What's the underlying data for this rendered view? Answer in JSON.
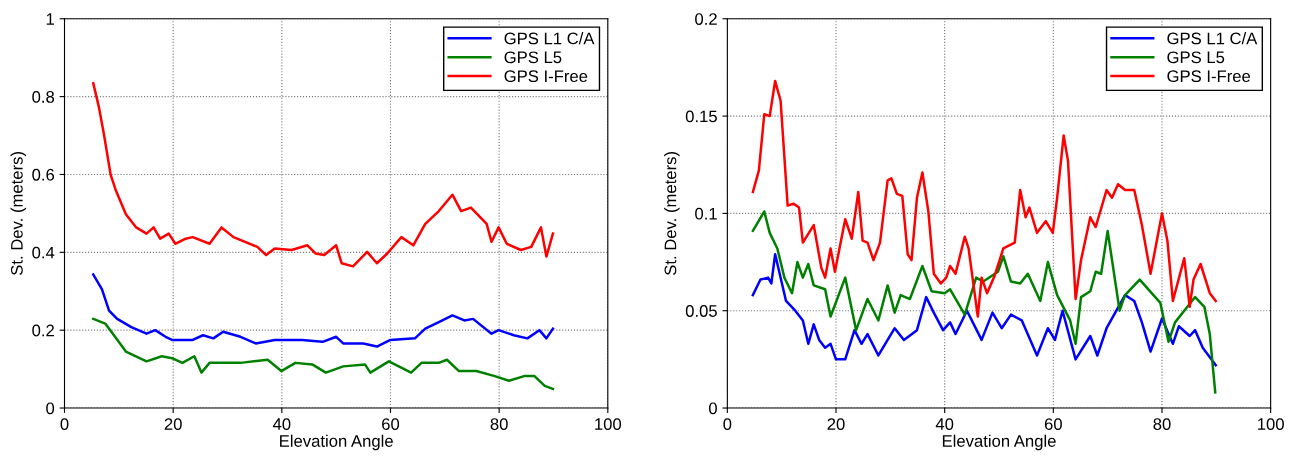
{
  "chart_data": [
    {
      "type": "line",
      "xlabel": "Elevation Angle",
      "ylabel": "St. Dev. (meters)",
      "xlim": [
        0,
        100
      ],
      "xticks": [
        0,
        20,
        40,
        60,
        80,
        100
      ],
      "ylim": [
        0,
        1
      ],
      "yticks": [
        0,
        0.2,
        0.4,
        0.6,
        0.8,
        1
      ],
      "grid": true,
      "legend": "top right",
      "line_style": "solid",
      "series": [
        {
          "name": "GPS L1 C/A",
          "color": "#0000ff",
          "x": [
            5.3,
            6.9,
            8.2,
            9.7,
            12.3,
            15.1,
            16.7,
            18.6,
            19.8,
            23.6,
            25.5,
            27.4,
            29.2,
            32.4,
            35.2,
            38.7,
            43.7,
            47.5,
            50,
            51.3,
            55,
            57.5,
            60,
            64.5,
            66.4,
            68.9,
            71.4,
            73.6,
            75.2,
            78.6,
            79.9,
            82.7,
            85.2,
            87.4,
            88.7,
            89.9
          ],
          "values": [
            0.343,
            0.305,
            0.25,
            0.229,
            0.208,
            0.191,
            0.2,
            0.183,
            0.175,
            0.175,
            0.187,
            0.179,
            0.196,
            0.183,
            0.166,
            0.175,
            0.175,
            0.17,
            0.183,
            0.166,
            0.166,
            0.158,
            0.175,
            0.179,
            0.204,
            0.221,
            0.238,
            0.225,
            0.229,
            0.191,
            0.2,
            0.187,
            0.179,
            0.2,
            0.179,
            0.204
          ]
        },
        {
          "name": "GPS L5",
          "color": "#008000",
          "x": [
            5.3,
            7.5,
            9.1,
            11.3,
            15.1,
            17.9,
            19.8,
            21.7,
            23.9,
            25.2,
            26.7,
            32.4,
            37.4,
            39.9,
            42.5,
            45.6,
            48.1,
            51.3,
            55.3,
            56.3,
            59.7,
            63.8,
            65.7,
            68.9,
            70.4,
            72.6,
            75.8,
            79.2,
            81.8,
            84.6,
            86.5,
            88.4,
            89.9
          ],
          "values": [
            0.229,
            0.217,
            0.187,
            0.145,
            0.12,
            0.133,
            0.128,
            0.116,
            0.133,
            0.091,
            0.116,
            0.116,
            0.124,
            0.095,
            0.116,
            0.112,
            0.091,
            0.107,
            0.112,
            0.091,
            0.12,
            0.091,
            0.116,
            0.116,
            0.124,
            0.095,
            0.095,
            0.082,
            0.07,
            0.082,
            0.082,
            0.057,
            0.049
          ]
        },
        {
          "name": "GPS I-Free",
          "color": "#ff0000",
          "x": [
            5.3,
            6.3,
            7.2,
            8.5,
            9.4,
            11.3,
            13.2,
            15.1,
            16.4,
            17.6,
            19.2,
            20.4,
            22.3,
            23.6,
            26.7,
            28.9,
            31.1,
            35.5,
            37.1,
            38.7,
            41.8,
            44.7,
            46.2,
            47.8,
            50,
            51,
            53.1,
            55.7,
            57.5,
            59.4,
            62,
            64.2,
            66.4,
            68.9,
            71.4,
            73,
            74.8,
            77.7,
            78.6,
            79.9,
            81.4,
            84,
            85.9,
            87.7,
            88.7,
            89.9
          ],
          "values": [
            0.834,
            0.775,
            0.708,
            0.599,
            0.561,
            0.498,
            0.464,
            0.448,
            0.464,
            0.435,
            0.448,
            0.422,
            0.435,
            0.439,
            0.422,
            0.464,
            0.439,
            0.414,
            0.393,
            0.41,
            0.406,
            0.418,
            0.397,
            0.393,
            0.418,
            0.372,
            0.364,
            0.401,
            0.372,
            0.397,
            0.439,
            0.418,
            0.473,
            0.506,
            0.548,
            0.506,
            0.515,
            0.473,
            0.427,
            0.464,
            0.422,
            0.406,
            0.414,
            0.464,
            0.389,
            0.448
          ]
        }
      ]
    },
    {
      "type": "line",
      "xlabel": "Elevation Angle",
      "ylabel": "St. Dev. (meters)",
      "xlim": [
        0,
        100
      ],
      "xticks": [
        0,
        20,
        40,
        60,
        80,
        100
      ],
      "ylim": [
        0,
        0.2
      ],
      "yticks": [
        0,
        0.05,
        0.1,
        0.15,
        0.2
      ],
      "grid": true,
      "legend": "top right",
      "line_style": "solid",
      "series": [
        {
          "name": "GPS L1 C/A",
          "color": "#0000ff",
          "x": [
            4.7,
            6.1,
            7.5,
            8.1,
            8.8,
            10.8,
            12.5,
            13.9,
            14.9,
            15.9,
            16.9,
            18,
            19,
            20,
            21.7,
            23.4,
            24.7,
            25.8,
            27.8,
            30.8,
            32.5,
            34.9,
            36.6,
            38,
            39.7,
            41,
            42,
            44.1,
            46.8,
            48.8,
            50.5,
            52.2,
            54.2,
            57,
            59,
            60.3,
            61.7,
            64.1,
            66.8,
            68.1,
            69.8,
            73.2,
            74.9,
            76.3,
            77.9,
            80,
            82,
            83.1,
            85.1,
            86.1,
            87.5,
            89.9
          ],
          "values": [
            0.058,
            0.066,
            0.067,
            0.064,
            0.079,
            0.055,
            0.05,
            0.045,
            0.033,
            0.043,
            0.035,
            0.031,
            0.033,
            0.025,
            0.025,
            0.04,
            0.033,
            0.038,
            0.027,
            0.041,
            0.035,
            0.04,
            0.057,
            0.049,
            0.04,
            0.044,
            0.038,
            0.05,
            0.035,
            0.049,
            0.041,
            0.048,
            0.045,
            0.027,
            0.041,
            0.035,
            0.05,
            0.025,
            0.037,
            0.027,
            0.041,
            0.058,
            0.055,
            0.044,
            0.029,
            0.046,
            0.033,
            0.042,
            0.037,
            0.04,
            0.031,
            0.022
          ]
        },
        {
          "name": "GPS L5",
          "color": "#008000",
          "x": [
            4.7,
            6.8,
            7.8,
            9.2,
            10.5,
            11.9,
            12.9,
            13.9,
            14.9,
            15.9,
            18,
            19,
            21.7,
            23.7,
            25.8,
            27.8,
            29.5,
            30.8,
            31.9,
            33.6,
            35.9,
            37.6,
            40,
            41,
            43.7,
            45.8,
            47.1,
            49.8,
            50.8,
            52.2,
            53.9,
            55.3,
            57.6,
            59,
            60.7,
            63.1,
            64.1,
            65.1,
            66.8,
            67.8,
            68.8,
            70,
            72.2,
            73.2,
            75.9,
            79.7,
            81.2,
            82.4,
            84.1,
            86.1,
            87.8,
            88.8,
            89.8
          ],
          "values": [
            0.091,
            0.101,
            0.09,
            0.082,
            0.067,
            0.059,
            0.075,
            0.067,
            0.074,
            0.063,
            0.061,
            0.047,
            0.067,
            0.04,
            0.056,
            0.045,
            0.063,
            0.049,
            0.058,
            0.056,
            0.073,
            0.06,
            0.059,
            0.061,
            0.048,
            0.067,
            0.065,
            0.07,
            0.078,
            0.065,
            0.064,
            0.069,
            0.055,
            0.075,
            0.058,
            0.045,
            0.033,
            0.057,
            0.06,
            0.07,
            0.069,
            0.091,
            0.05,
            0.058,
            0.066,
            0.054,
            0.034,
            0.044,
            0.05,
            0.057,
            0.052,
            0.038,
            0.008
          ]
        },
        {
          "name": "GPS I-Free",
          "color": "#ff0000",
          "x": [
            4.7,
            5.8,
            6.8,
            7.8,
            8.8,
            9.8,
            11.1,
            12.2,
            13.2,
            13.9,
            15.9,
            17.3,
            18,
            19,
            19.8,
            21.7,
            22.9,
            24.1,
            24.9,
            25.8,
            26.9,
            28.1,
            29.5,
            30.2,
            31.2,
            32.2,
            33.2,
            33.9,
            34.9,
            35.9,
            37,
            38,
            39.3,
            40.3,
            41,
            42,
            43.7,
            44.4,
            46.1,
            46.8,
            47.8,
            49.2,
            50.8,
            52.9,
            53.9,
            54.9,
            55.6,
            57,
            58.6,
            59.9,
            60.7,
            61.9,
            62.7,
            64.1,
            65.1,
            66.8,
            67.8,
            69.8,
            70.8,
            71.9,
            73.2,
            74.9,
            76.3,
            77.9,
            80,
            81,
            82,
            84.1,
            85.1,
            85.8,
            87.1,
            88.8,
            89.9
          ],
          "values": [
            0.111,
            0.122,
            0.151,
            0.15,
            0.168,
            0.158,
            0.104,
            0.105,
            0.103,
            0.085,
            0.094,
            0.072,
            0.067,
            0.082,
            0.07,
            0.097,
            0.087,
            0.111,
            0.086,
            0.085,
            0.076,
            0.085,
            0.117,
            0.118,
            0.11,
            0.109,
            0.079,
            0.076,
            0.108,
            0.121,
            0.101,
            0.069,
            0.064,
            0.067,
            0.073,
            0.069,
            0.088,
            0.082,
            0.047,
            0.067,
            0.059,
            0.068,
            0.082,
            0.085,
            0.112,
            0.098,
            0.103,
            0.09,
            0.096,
            0.09,
            0.108,
            0.14,
            0.127,
            0.056,
            0.076,
            0.098,
            0.093,
            0.112,
            0.108,
            0.115,
            0.112,
            0.112,
            0.094,
            0.069,
            0.1,
            0.086,
            0.055,
            0.077,
            0.052,
            0.066,
            0.074,
            0.059,
            0.055
          ]
        }
      ]
    }
  ]
}
